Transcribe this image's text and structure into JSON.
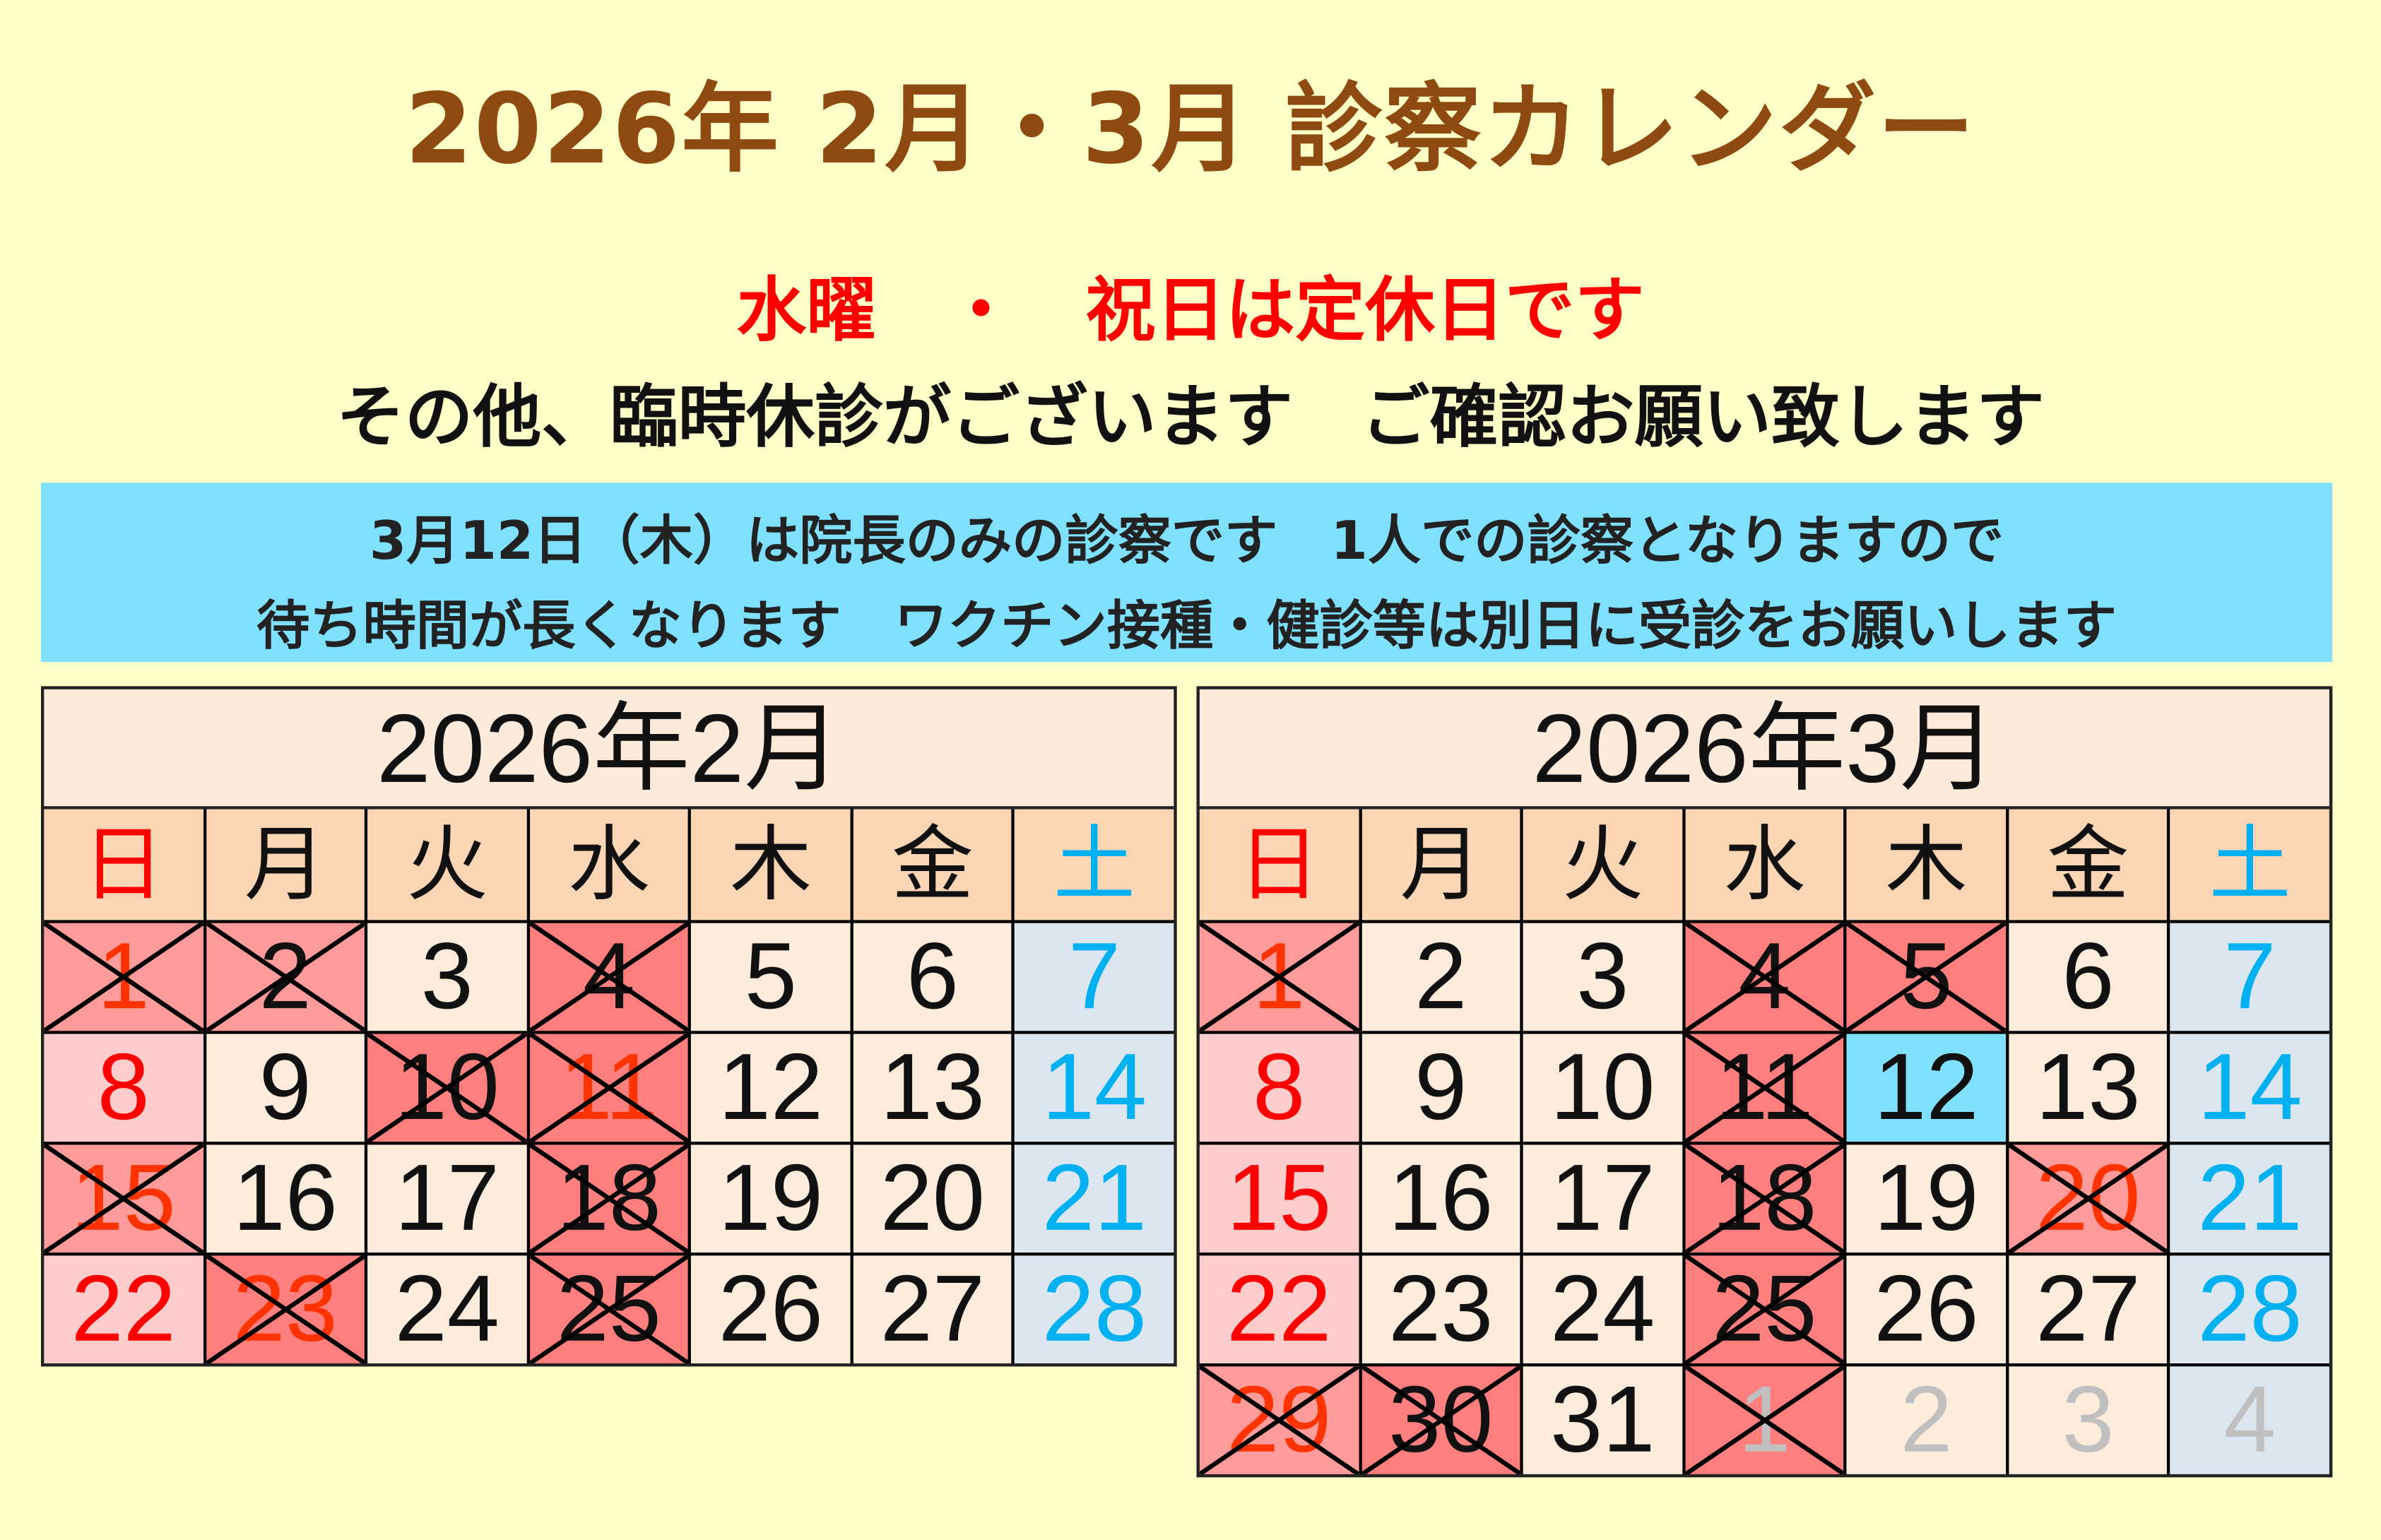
{
  "title": "2026年 2月・3月 診察カレンダー",
  "line1": "水曜　・　祝日は定休日です",
  "line2": "その他、臨時休診がございます　ご確認お願い致します",
  "notice": [
    "3月12日（木）は院長のみの診察です　1人での診察となりますので",
    "待ち時間が長くなります　ワクチン接種・健診等は別日に受診をお願いします"
  ],
  "colors": {
    "normal": "#fdebdc",
    "sunday": "#ffcccc",
    "saturday": "#dce6f0",
    "closed_light": "#ff9b9b",
    "closed": "#ff7f7f",
    "special": "#7fe1ff",
    "red": "#ff0000",
    "holiday": "#ff3300",
    "blue": "#00b0f0",
    "black": "#111111",
    "gray": "#c0c0c0"
  },
  "weekdays": [
    {
      "label": "日",
      "color": "red"
    },
    {
      "label": "月",
      "color": "black"
    },
    {
      "label": "火",
      "color": "black"
    },
    {
      "label": "水",
      "color": "black"
    },
    {
      "label": "木",
      "color": "black"
    },
    {
      "label": "金",
      "color": "black"
    },
    {
      "label": "土",
      "color": "blue"
    }
  ],
  "months": [
    {
      "title": "2026年2月",
      "days": [
        {
          "d": "1",
          "bg": "closed_light",
          "c": "holiday",
          "x": true
        },
        {
          "d": "2",
          "bg": "closed_light",
          "c": "black",
          "x": true
        },
        {
          "d": "3",
          "bg": "normal",
          "c": "black"
        },
        {
          "d": "4",
          "bg": "closed",
          "c": "black",
          "x": true
        },
        {
          "d": "5",
          "bg": "normal",
          "c": "black"
        },
        {
          "d": "6",
          "bg": "normal",
          "c": "black"
        },
        {
          "d": "7",
          "bg": "saturday",
          "c": "blue"
        },
        {
          "d": "8",
          "bg": "sunday",
          "c": "red"
        },
        {
          "d": "9",
          "bg": "normal",
          "c": "black"
        },
        {
          "d": "10",
          "bg": "closed",
          "c": "black",
          "x": true
        },
        {
          "d": "11",
          "bg": "closed",
          "c": "holiday",
          "x": true
        },
        {
          "d": "12",
          "bg": "normal",
          "c": "black"
        },
        {
          "d": "13",
          "bg": "normal",
          "c": "black"
        },
        {
          "d": "14",
          "bg": "saturday",
          "c": "blue"
        },
        {
          "d": "15",
          "bg": "closed_light",
          "c": "holiday",
          "x": true
        },
        {
          "d": "16",
          "bg": "normal",
          "c": "black"
        },
        {
          "d": "17",
          "bg": "normal",
          "c": "black"
        },
        {
          "d": "18",
          "bg": "closed",
          "c": "black",
          "x": true
        },
        {
          "d": "19",
          "bg": "normal",
          "c": "black"
        },
        {
          "d": "20",
          "bg": "normal",
          "c": "black"
        },
        {
          "d": "21",
          "bg": "saturday",
          "c": "blue"
        },
        {
          "d": "22",
          "bg": "sunday",
          "c": "red"
        },
        {
          "d": "23",
          "bg": "closed",
          "c": "holiday",
          "x": true
        },
        {
          "d": "24",
          "bg": "normal",
          "c": "black"
        },
        {
          "d": "25",
          "bg": "closed",
          "c": "black",
          "x": true
        },
        {
          "d": "26",
          "bg": "normal",
          "c": "black"
        },
        {
          "d": "27",
          "bg": "normal",
          "c": "black"
        },
        {
          "d": "28",
          "bg": "saturday",
          "c": "blue"
        }
      ]
    },
    {
      "title": "2026年3月",
      "days": [
        {
          "d": "1",
          "bg": "closed_light",
          "c": "holiday",
          "x": true
        },
        {
          "d": "2",
          "bg": "normal",
          "c": "black"
        },
        {
          "d": "3",
          "bg": "normal",
          "c": "black"
        },
        {
          "d": "4",
          "bg": "closed",
          "c": "black",
          "x": true
        },
        {
          "d": "5",
          "bg": "closed",
          "c": "black",
          "x": true
        },
        {
          "d": "6",
          "bg": "normal",
          "c": "black"
        },
        {
          "d": "7",
          "bg": "saturday",
          "c": "blue"
        },
        {
          "d": "8",
          "bg": "sunday",
          "c": "red"
        },
        {
          "d": "9",
          "bg": "normal",
          "c": "black"
        },
        {
          "d": "10",
          "bg": "normal",
          "c": "black"
        },
        {
          "d": "11",
          "bg": "closed",
          "c": "black",
          "x": true
        },
        {
          "d": "12",
          "bg": "special",
          "c": "black"
        },
        {
          "d": "13",
          "bg": "normal",
          "c": "black"
        },
        {
          "d": "14",
          "bg": "saturday",
          "c": "blue"
        },
        {
          "d": "15",
          "bg": "sunday",
          "c": "red"
        },
        {
          "d": "16",
          "bg": "normal",
          "c": "black"
        },
        {
          "d": "17",
          "bg": "normal",
          "c": "black"
        },
        {
          "d": "18",
          "bg": "closed",
          "c": "black",
          "x": true
        },
        {
          "d": "19",
          "bg": "normal",
          "c": "black"
        },
        {
          "d": "20",
          "bg": "closed_light",
          "c": "holiday",
          "x": true
        },
        {
          "d": "21",
          "bg": "saturday",
          "c": "blue"
        },
        {
          "d": "22",
          "bg": "sunday",
          "c": "red"
        },
        {
          "d": "23",
          "bg": "normal",
          "c": "black"
        },
        {
          "d": "24",
          "bg": "normal",
          "c": "black"
        },
        {
          "d": "25",
          "bg": "closed",
          "c": "black",
          "x": true
        },
        {
          "d": "26",
          "bg": "normal",
          "c": "black"
        },
        {
          "d": "27",
          "bg": "normal",
          "c": "black"
        },
        {
          "d": "28",
          "bg": "saturday",
          "c": "blue"
        },
        {
          "d": "29",
          "bg": "closed_light",
          "c": "holiday",
          "x": true
        },
        {
          "d": "30",
          "bg": "closed",
          "c": "black",
          "x": true
        },
        {
          "d": "31",
          "bg": "normal",
          "c": "black"
        },
        {
          "d": "1",
          "bg": "closed",
          "c": "gray",
          "x": true
        },
        {
          "d": "2",
          "bg": "normal",
          "c": "gray"
        },
        {
          "d": "3",
          "bg": "normal",
          "c": "gray"
        },
        {
          "d": "4",
          "bg": "saturday",
          "c": "gray"
        }
      ]
    }
  ]
}
